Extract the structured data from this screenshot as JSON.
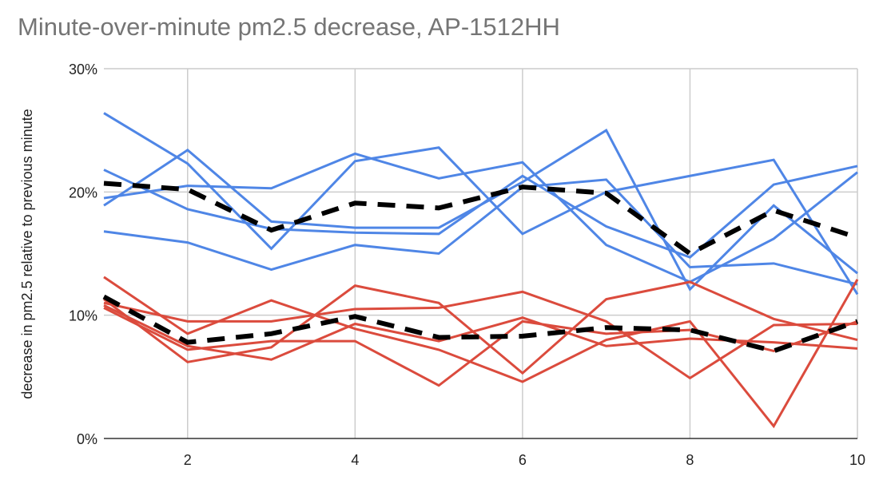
{
  "chart_data": {
    "type": "line",
    "title": "Minute-over-minute pm2.5 decrease, AP-1512HH",
    "xlabel": "",
    "ylabel": "decrease in pm2.5 relative to previous minute",
    "x": [
      1,
      2,
      3,
      4,
      5,
      6,
      7,
      8,
      9,
      10
    ],
    "xlim": [
      1,
      10
    ],
    "ylim": [
      0,
      30
    ],
    "x_ticks": [
      "2",
      "4",
      "6",
      "8",
      "10"
    ],
    "x_tick_values": [
      2,
      4,
      6,
      8,
      10
    ],
    "y_ticks": [
      "0%",
      "10%",
      "20%",
      "30%"
    ],
    "y_tick_values": [
      0,
      10,
      20,
      30
    ],
    "grid": true,
    "legend": "none",
    "colors": {
      "blue": "#4f86e6",
      "red": "#db4b3d",
      "average": "#000000",
      "grid": "#cccccc",
      "title": "#757575"
    },
    "series": [
      {
        "group": "blue",
        "values": [
          26.4,
          22.3,
          15.4,
          22.5,
          23.6,
          16.6,
          20.0,
          21.3,
          22.6,
          11.7
        ]
      },
      {
        "group": "blue",
        "values": [
          18.9,
          23.4,
          17.6,
          17.1,
          17.1,
          20.8,
          25.0,
          12.1,
          18.9,
          13.4
        ]
      },
      {
        "group": "blue",
        "values": [
          21.8,
          18.6,
          17.0,
          16.7,
          16.6,
          21.3,
          17.2,
          14.7,
          20.6,
          22.1
        ]
      },
      {
        "group": "blue",
        "values": [
          19.5,
          20.5,
          20.3,
          23.1,
          21.1,
          22.4,
          15.7,
          12.7,
          16.2,
          21.6
        ]
      },
      {
        "group": "blue",
        "values": [
          16.8,
          15.9,
          13.7,
          15.7,
          15.0,
          20.4,
          21.0,
          13.9,
          14.2,
          12.5
        ]
      },
      {
        "group": "red",
        "values": [
          13.1,
          8.5,
          11.2,
          8.9,
          7.2,
          4.6,
          8.0,
          9.5,
          1.0,
          12.9
        ]
      },
      {
        "group": "red",
        "values": [
          11.3,
          6.2,
          7.4,
          12.4,
          11.0,
          5.3,
          11.3,
          12.7,
          9.7,
          8.0
        ]
      },
      {
        "group": "red",
        "values": [
          11.0,
          9.5,
          9.5,
          10.5,
          10.6,
          11.9,
          9.5,
          4.9,
          9.2,
          9.3
        ]
      },
      {
        "group": "red",
        "values": [
          10.8,
          7.5,
          6.4,
          9.3,
          7.9,
          9.8,
          7.5,
          8.1,
          7.8,
          7.3
        ]
      },
      {
        "group": "red",
        "values": [
          10.6,
          7.2,
          7.9,
          7.9,
          4.3,
          9.5,
          8.5,
          8.8,
          7.1,
          9.5
        ]
      },
      {
        "group": "average",
        "dashed": true,
        "values": [
          20.7,
          20.2,
          16.9,
          19.1,
          18.7,
          20.4,
          19.9,
          15.0,
          18.5,
          16.3
        ]
      },
      {
        "group": "average",
        "dashed": true,
        "values": [
          11.5,
          7.8,
          8.5,
          9.9,
          8.2,
          8.3,
          9.0,
          8.8,
          7.1,
          9.5
        ]
      }
    ]
  }
}
